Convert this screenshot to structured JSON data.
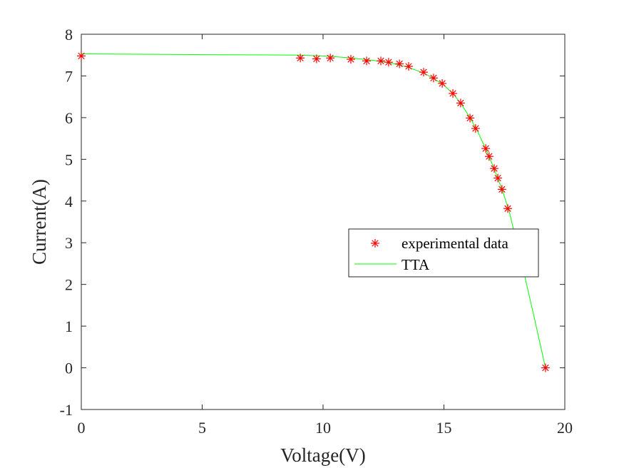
{
  "chart_data": {
    "type": "line",
    "title": "",
    "xlabel": "Voltage(V)",
    "ylabel": "Current(A)",
    "xlim": [
      0,
      20
    ],
    "ylim": [
      -1,
      8
    ],
    "xticks": [
      "0",
      "5",
      "10",
      "15",
      "20"
    ],
    "yticks": [
      "-1",
      "0",
      "1",
      "2",
      "3",
      "4",
      "5",
      "6",
      "7",
      "8"
    ],
    "grid": false,
    "legend_position": "center-right",
    "series": [
      {
        "name": "experimental data",
        "kind": "scatter",
        "marker": "asterisk",
        "color": "#ff0000",
        "x": [
          0,
          9.06,
          9.73,
          10.3,
          11.15,
          11.8,
          12.39,
          12.71,
          13.16,
          13.54,
          14.16,
          14.57,
          14.93,
          15.37,
          15.69,
          16.08,
          16.31,
          16.73,
          16.87,
          17.08,
          17.23,
          17.4,
          17.64,
          19.2
        ],
        "y": [
          7.48,
          7.43,
          7.41,
          7.43,
          7.4,
          7.36,
          7.36,
          7.33,
          7.29,
          7.23,
          7.09,
          6.95,
          6.82,
          6.58,
          6.35,
          5.99,
          5.74,
          5.26,
          5.07,
          4.78,
          4.55,
          4.28,
          3.82,
          0
        ]
      },
      {
        "name": "TTA",
        "kind": "line",
        "color": "#00ff00",
        "x": [
          0,
          5,
          9,
          10,
          11,
          12,
          12.7,
          13.2,
          13.6,
          14.2,
          14.6,
          15.0,
          15.4,
          15.7,
          16.1,
          16.4,
          16.8,
          17.1,
          17.4,
          17.7,
          18.2,
          18.7,
          19.2
        ],
        "y": [
          7.53,
          7.51,
          7.5,
          7.48,
          7.44,
          7.38,
          7.32,
          7.26,
          7.19,
          7.06,
          6.93,
          6.78,
          6.56,
          6.34,
          5.98,
          5.66,
          5.16,
          4.74,
          4.28,
          3.75,
          2.55,
          1.3,
          0
        ]
      }
    ]
  }
}
